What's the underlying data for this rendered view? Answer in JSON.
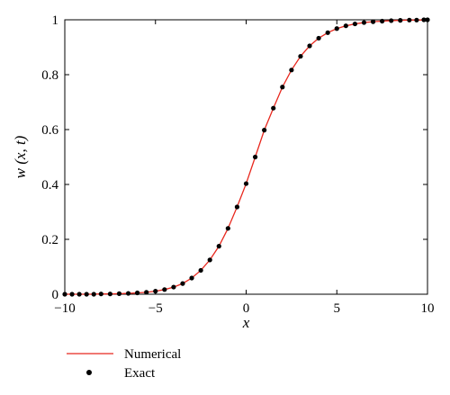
{
  "chart_data": {
    "type": "line",
    "title": "",
    "xlabel": "x",
    "ylabel": "w (x, t)",
    "xlim": [
      -10,
      10
    ],
    "ylim": [
      0,
      1
    ],
    "x_ticks": [
      -10,
      -5,
      0,
      5,
      10
    ],
    "y_ticks": [
      0,
      0.2,
      0.4,
      0.6,
      0.8,
      1
    ],
    "x_tick_labels": [
      "−10",
      "−5",
      "0",
      "5",
      "10"
    ],
    "y_tick_labels": [
      "0",
      "0.2",
      "0.4",
      "0.6",
      "0.8",
      "1"
    ],
    "grid": false,
    "legend_position": "below",
    "series": [
      {
        "name": "Numerical",
        "style": "line",
        "color": "#e8281e",
        "x": [
          -10,
          -9.5,
          -9,
          -8.5,
          -8,
          -7.5,
          -7,
          -6.5,
          -6,
          -5.5,
          -5,
          -4.5,
          -4,
          -3.5,
          -3,
          -2.5,
          -2,
          -1.5,
          -1,
          -0.5,
          0,
          0.5,
          1,
          1.5,
          2,
          2.5,
          3,
          3.5,
          4,
          4.5,
          5,
          5.5,
          6,
          6.5,
          7,
          7.5,
          8,
          8.5,
          9,
          9.5,
          10
        ],
        "y": [
          0.0,
          0.0,
          0.0,
          0.0,
          0.001,
          0.001,
          0.002,
          0.003,
          0.005,
          0.007,
          0.011,
          0.017,
          0.026,
          0.039,
          0.059,
          0.087,
          0.125,
          0.175,
          0.24,
          0.318,
          0.403,
          0.5,
          0.598,
          0.678,
          0.755,
          0.817,
          0.867,
          0.905,
          0.933,
          0.953,
          0.968,
          0.978,
          0.985,
          0.99,
          0.993,
          0.995,
          0.997,
          0.998,
          0.999,
          0.999,
          1.0
        ]
      },
      {
        "name": "Exact",
        "style": "markers",
        "color": "#000000",
        "x": [
          -10,
          -9.6,
          -9.2,
          -8.8,
          -8.4,
          -8,
          -7.5,
          -7,
          -6.5,
          -6,
          -5.5,
          -5,
          -4.5,
          -4,
          -3.5,
          -3,
          -2.5,
          -2,
          -1.5,
          -1,
          -0.5,
          0,
          0.5,
          1,
          1.5,
          2,
          2.5,
          3,
          3.5,
          4,
          4.5,
          5,
          5.5,
          6,
          6.5,
          7,
          7.5,
          8,
          8.5,
          9,
          9.4,
          9.8,
          10
        ],
        "y": [
          0.0,
          0.0,
          0.0,
          0.0,
          0.0,
          0.001,
          0.001,
          0.002,
          0.003,
          0.005,
          0.007,
          0.011,
          0.017,
          0.026,
          0.039,
          0.059,
          0.087,
          0.125,
          0.175,
          0.24,
          0.318,
          0.403,
          0.5,
          0.598,
          0.678,
          0.755,
          0.817,
          0.867,
          0.905,
          0.933,
          0.953,
          0.968,
          0.978,
          0.985,
          0.99,
          0.993,
          0.995,
          0.997,
          0.998,
          0.999,
          0.999,
          1.0,
          1.0
        ]
      }
    ]
  }
}
